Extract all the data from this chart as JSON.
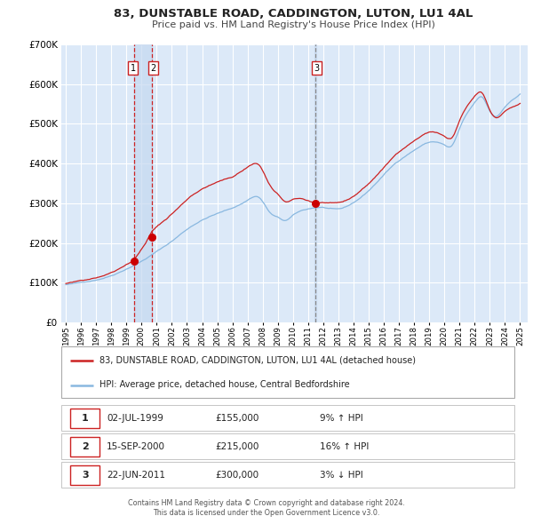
{
  "title": "83, DUNSTABLE ROAD, CADDINGTON, LUTON, LU1 4AL",
  "subtitle": "Price paid vs. HM Land Registry's House Price Index (HPI)",
  "ylim": [
    0,
    700000
  ],
  "yticks": [
    0,
    100000,
    200000,
    300000,
    400000,
    500000,
    600000,
    700000
  ],
  "ytick_labels": [
    "£0",
    "£100K",
    "£200K",
    "£300K",
    "£400K",
    "£500K",
    "£600K",
    "£700K"
  ],
  "xmin": 1994.7,
  "xmax": 2025.5,
  "fig_bg_color": "#ffffff",
  "plot_bg_color": "#dce9f8",
  "grid_color": "#ffffff",
  "line_color_hpi": "#89b8e0",
  "line_color_price": "#cc2222",
  "sale_marker_color": "#cc0000",
  "vline_colors": [
    "#cc2222",
    "#cc2222",
    "#888888"
  ],
  "vspan_color": "#c5d8f0",
  "sale_dates": [
    1999.5,
    2000.71,
    2011.47
  ],
  "sale_prices": [
    155000,
    215000,
    300000
  ],
  "sale_labels": [
    "1",
    "2",
    "3"
  ],
  "footnote1": "Contains HM Land Registry data © Crown copyright and database right 2024.",
  "footnote2": "This data is licensed under the Open Government Licence v3.0.",
  "legend_entries": [
    "83, DUNSTABLE ROAD, CADDINGTON, LUTON, LU1 4AL (detached house)",
    "HPI: Average price, detached house, Central Bedfordshire"
  ],
  "table_data": [
    [
      "1",
      "02-JUL-1999",
      "£155,000",
      "9% ↑ HPI"
    ],
    [
      "2",
      "15-SEP-2000",
      "£215,000",
      "16% ↑ HPI"
    ],
    [
      "3",
      "22-JUN-2011",
      "£300,000",
      "3% ↓ HPI"
    ]
  ],
  "hpi_anchors_y": [
    1995,
    1996,
    1997,
    1998,
    1999,
    2000,
    2001,
    2002,
    2003,
    2004,
    2005,
    2006,
    2007,
    2007.8,
    2008.5,
    2009,
    2009.5,
    2010,
    2011,
    2012,
    2013,
    2014,
    2015,
    2016,
    2017,
    2018,
    2019,
    2020,
    2020.5,
    2021,
    2022,
    2022.5,
    2023,
    2023.5,
    2024,
    2024.7,
    2025
  ],
  "hpi_anchors_v": [
    95000,
    100000,
    108000,
    120000,
    138000,
    158000,
    182000,
    208000,
    238000,
    262000,
    278000,
    292000,
    312000,
    318000,
    280000,
    268000,
    260000,
    272000,
    288000,
    292000,
    286000,
    302000,
    332000,
    372000,
    408000,
    435000,
    455000,
    448000,
    446000,
    488000,
    552000,
    565000,
    530000,
    518000,
    542000,
    565000,
    575000
  ],
  "price_scale_anchors_y": [
    1995,
    1999.5,
    2000.71,
    2006,
    2007,
    2008.5,
    2009.5,
    2011.47,
    2013,
    2016,
    2019,
    2022,
    2025
  ],
  "price_scale_anchors_v": [
    1.03,
    1.12,
    1.36,
    1.28,
    1.28,
    1.25,
    1.18,
    1.04,
    1.06,
    1.06,
    1.07,
    1.04,
    0.97
  ]
}
